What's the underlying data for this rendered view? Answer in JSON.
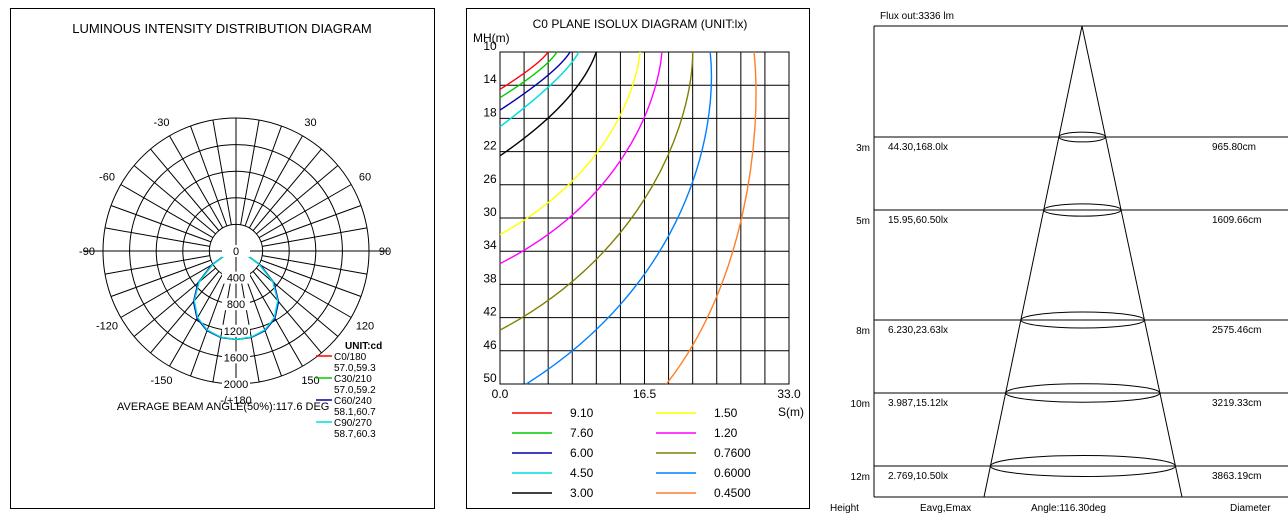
{
  "polar": {
    "title": "LUMINOUS INTENSITY DISTRIBUTION DIAGRAM",
    "angle_labels": [
      "-/+180",
      "-150",
      "150",
      "-120",
      "120",
      "-90",
      "90",
      "-60",
      "60",
      "-30",
      "30"
    ],
    "radial_labels": [
      "0",
      "400",
      "800",
      "1200",
      "1600",
      "2000"
    ],
    "unit": "UNIT:cd",
    "legend": [
      {
        "name": "C0/180",
        "sub": "57.0,59.3",
        "color": "#ff0000"
      },
      {
        "name": "C30/210",
        "sub": "57.0,59.2",
        "color": "#00cc00"
      },
      {
        "name": "C60/240",
        "sub": "58.1,60.7",
        "color": "#0000aa"
      },
      {
        "name": "C90/270",
        "sub": "58.7,60.3",
        "color": "#00dddd"
      }
    ],
    "beam_angle": "AVERAGE BEAM ANGLE(50%):117.6 DEG"
  },
  "isolux": {
    "title": "C0 PLANE ISOLUX DIAGRAM (UNIT:lx)",
    "y_axis_label": "MH(m)",
    "x_axis_label": "S(m)",
    "y_ticks": [
      "10",
      "14",
      "18",
      "22",
      "26",
      "30",
      "34",
      "38",
      "42",
      "46",
      "50"
    ],
    "x_ticks": [
      "0.0",
      "16.5",
      "33.0"
    ],
    "legend": [
      {
        "value": "9.10",
        "color": "#ff0000"
      },
      {
        "value": "1.50",
        "color": "#ffff00"
      },
      {
        "value": "7.60",
        "color": "#00cc00"
      },
      {
        "value": "1.20",
        "color": "#ff00ff"
      },
      {
        "value": "6.00",
        "color": "#0000aa"
      },
      {
        "value": "0.7600",
        "color": "#808000"
      },
      {
        "value": "4.50",
        "color": "#00dddd"
      },
      {
        "value": "0.6000",
        "color": "#0080ff"
      },
      {
        "value": "3.00",
        "color": "#000000"
      },
      {
        "value": "0.4500",
        "color": "#ff7f27"
      }
    ]
  },
  "cone": {
    "flux": "Flux out:3336 lm",
    "rows": [
      {
        "height": "3m",
        "eavg": "44.30,168.0lx",
        "diameter": "965.80cm"
      },
      {
        "height": "5m",
        "eavg": "15.95,60.50lx",
        "diameter": "1609.66cm"
      },
      {
        "height": "8m",
        "eavg": "6.230,23.63lx",
        "diameter": "2575.46cm"
      },
      {
        "height": "10m",
        "eavg": "3.987,15.12lx",
        "diameter": "3219.33cm"
      },
      {
        "height": "12m",
        "eavg": "2.769,10.50lx",
        "diameter": "3863.19cm"
      }
    ],
    "footer": {
      "height": "Height",
      "eavg": "Eavg,Emax",
      "angle": "Angle:116.30deg",
      "diameter": "Diameter"
    }
  },
  "chart_data": [
    {
      "type": "polar",
      "title": "LUMINOUS INTENSITY DISTRIBUTION DIAGRAM",
      "unit": "cd",
      "rmax": 2000,
      "angles_deg": [
        0,
        10,
        20,
        30,
        40,
        50,
        60,
        70,
        80,
        90
      ],
      "series": [
        {
          "name": "C0/180",
          "values": [
            1330,
            1320,
            1270,
            1160,
            980,
            730,
            410,
            160,
            30,
            0
          ]
        },
        {
          "name": "C30/210",
          "values": [
            1330,
            1320,
            1270,
            1165,
            985,
            735,
            415,
            165,
            30,
            0
          ]
        },
        {
          "name": "C60/240",
          "values": [
            1330,
            1320,
            1275,
            1170,
            995,
            745,
            425,
            170,
            35,
            0
          ]
        },
        {
          "name": "C90/270",
          "values": [
            1330,
            1315,
            1265,
            1155,
            975,
            725,
            405,
            160,
            30,
            0
          ]
        }
      ],
      "beam_angle_deg": 117.6
    },
    {
      "type": "line",
      "title": "C0 PLANE ISOLUX DIAGRAM (UNIT:lx)",
      "xlabel": "S(m)",
      "ylabel": "MH(m)",
      "xlim": [
        0,
        33
      ],
      "ylim": [
        10,
        50
      ],
      "series": [
        {
          "name": "9.10",
          "x": [
            0,
            4.5,
            5.5
          ],
          "y": [
            14.5,
            11.5,
            10
          ]
        },
        {
          "name": "7.60",
          "x": [
            0,
            5.3,
            6.5
          ],
          "y": [
            15.5,
            12,
            10
          ]
        },
        {
          "name": "6.00",
          "x": [
            0,
            6.5,
            8
          ],
          "y": [
            17,
            12.5,
            10
          ]
        },
        {
          "name": "4.50",
          "x": [
            0,
            7.5,
            9
          ],
          "y": [
            19,
            13,
            10
          ]
        },
        {
          "name": "3.00",
          "x": [
            0,
            9,
            11
          ],
          "y": [
            22.5,
            16,
            10
          ]
        },
        {
          "name": "1.50",
          "x": [
            0,
            12,
            15.5,
            16
          ],
          "y": [
            32,
            25,
            15,
            10
          ]
        },
        {
          "name": "1.20",
          "x": [
            0,
            14,
            18,
            18.5
          ],
          "y": [
            35.5,
            28,
            16,
            10
          ]
        },
        {
          "name": "0.7600",
          "x": [
            0,
            17,
            22,
            22
          ],
          "y": [
            43.5,
            34,
            18,
            10
          ]
        },
        {
          "name": "0.6000",
          "x": [
            3,
            21,
            25,
            24
          ],
          "y": [
            50,
            38,
            20,
            10
          ]
        },
        {
          "name": "0.4500",
          "x": [
            19,
            28,
            30,
            29
          ],
          "y": [
            50,
            38,
            20,
            10
          ]
        }
      ]
    },
    {
      "type": "table",
      "title": "Flux out:3336 lm",
      "columns": [
        "Height",
        "Eavg,Emax",
        "Diameter"
      ],
      "rows": [
        [
          "3m",
          "44.30,168.0lx",
          "965.80cm"
        ],
        [
          "5m",
          "15.95,60.50lx",
          "1609.66cm"
        ],
        [
          "8m",
          "6.230,23.63lx",
          "2575.46cm"
        ],
        [
          "10m",
          "3.987,15.12lx",
          "3219.33cm"
        ],
        [
          "12m",
          "2.769,10.50lx",
          "3863.19cm"
        ]
      ],
      "angle_deg": 116.3
    }
  ]
}
